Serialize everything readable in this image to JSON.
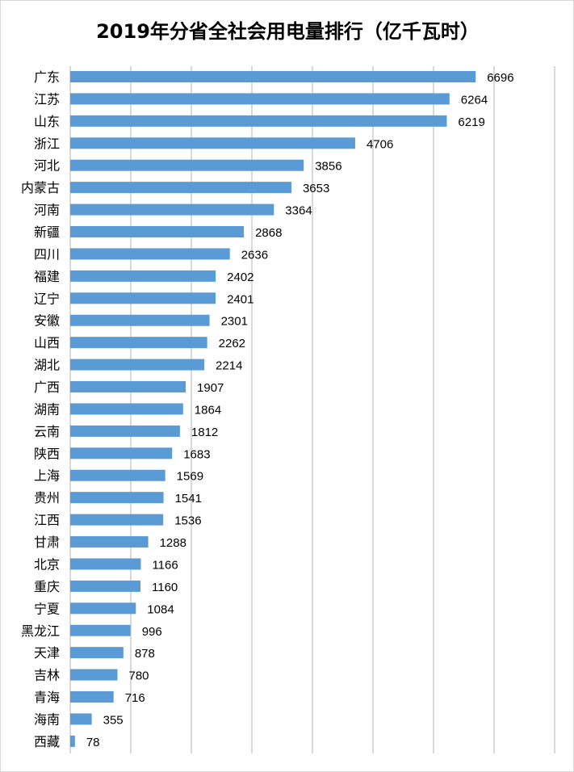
{
  "chart_data": {
    "type": "bar",
    "orientation": "horizontal",
    "title": "2019年分省全社会用电量排行（亿千瓦时）",
    "categories": [
      "广东",
      "江苏",
      "山东",
      "浙江",
      "河北",
      "内蒙古",
      "河南",
      "新疆",
      "四川",
      "福建",
      "辽宁",
      "安徽",
      "山西",
      "湖北",
      "广西",
      "湖南",
      "云南",
      "陕西",
      "上海",
      "贵州",
      "江西",
      "甘肃",
      "北京",
      "重庆",
      "宁夏",
      "黑龙江",
      "天津",
      "吉林",
      "青海",
      "海南",
      "西藏"
    ],
    "values": [
      6696,
      6264,
      6219,
      4706,
      3856,
      3653,
      3364,
      2868,
      2636,
      2402,
      2401,
      2301,
      2262,
      2214,
      1907,
      1864,
      1812,
      1683,
      1569,
      1541,
      1536,
      1288,
      1166,
      1160,
      1084,
      996,
      878,
      780,
      716,
      355,
      78
    ],
    "xlim": [
      0,
      8000
    ],
    "grid": true,
    "data_labels": true,
    "bar_color": "#5b9bd5",
    "grid_color": "#d9d9d9"
  }
}
